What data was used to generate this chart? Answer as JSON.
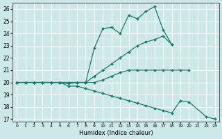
{
  "xlabel": "Humidex (Indice chaleur)",
  "bg_color": "#cce8e8",
  "grid_color": "#ffffff",
  "line_color": "#1a7a6a",
  "markersize": 2.0,
  "linewidth": 0.9,
  "ylim": [
    16.8,
    26.5
  ],
  "xlim": [
    -0.5,
    23.5
  ],
  "yticks": [
    17,
    18,
    19,
    20,
    21,
    22,
    23,
    24,
    25,
    26
  ],
  "xticks": [
    0,
    1,
    2,
    3,
    4,
    5,
    6,
    7,
    8,
    9,
    10,
    11,
    12,
    13,
    14,
    15,
    16,
    17,
    18,
    19,
    20,
    21,
    22,
    23
  ],
  "series": [
    {
      "x": [
        0,
        1,
        2,
        3,
        4,
        5,
        6,
        7,
        8,
        9,
        10,
        11,
        12,
        13,
        14,
        15,
        16,
        17,
        18
      ],
      "y": [
        20,
        20,
        20,
        20,
        20,
        20,
        20,
        20,
        20,
        22.8,
        24.4,
        24.5,
        24.0,
        25.5,
        25.2,
        25.8,
        26.2,
        24.3,
        23.1
      ]
    },
    {
      "x": [
        0,
        1,
        2,
        3,
        4,
        5,
        6,
        7,
        8,
        9,
        10,
        11,
        12,
        13,
        14,
        15,
        16,
        17,
        18
      ],
      "y": [
        20,
        20,
        20,
        20,
        20,
        20,
        20,
        20,
        20,
        20.5,
        21.0,
        21.5,
        22.0,
        22.5,
        23.0,
        23.3,
        23.5,
        23.8,
        23.1
      ]
    },
    {
      "x": [
        0,
        1,
        2,
        3,
        4,
        5,
        6,
        7,
        8,
        9,
        10,
        11,
        12,
        13,
        14,
        15,
        16,
        17,
        18,
        19,
        20
      ],
      "y": [
        20,
        20,
        20,
        20,
        20,
        20,
        19.9,
        20,
        20,
        20,
        20.2,
        20.5,
        20.8,
        21.0,
        21.0,
        21.0,
        21.0,
        21.0,
        21.0,
        21.0,
        21.0
      ]
    },
    {
      "x": [
        0,
        1,
        2,
        3,
        4,
        5,
        6,
        7,
        8,
        9,
        10,
        11,
        12,
        13,
        14,
        15,
        16,
        17,
        18,
        19,
        20,
        22,
        23
      ],
      "y": [
        20,
        20,
        20,
        20,
        20,
        20,
        19.7,
        19.7,
        19.5,
        19.3,
        19.1,
        18.9,
        18.7,
        18.5,
        18.3,
        18.1,
        17.9,
        17.7,
        17.5,
        18.5,
        18.4,
        17.2,
        17.0
      ]
    }
  ]
}
